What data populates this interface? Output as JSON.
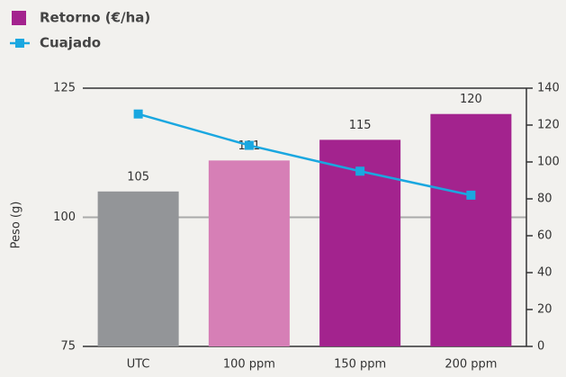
{
  "chart_data": {
    "type": "bar",
    "categories": [
      "UTC",
      "100 ppm",
      "150 ppm",
      "200 ppm"
    ],
    "series": [
      {
        "name": "Retorno (€/ha)",
        "type": "bar",
        "color": "#a3238e",
        "colors": [
          "#939598",
          "#d67fb6",
          "#a3238e",
          "#a3238e"
        ],
        "values": [
          105,
          111,
          115,
          120
        ]
      },
      {
        "name": "Cuajado",
        "type": "line",
        "axis": "y2",
        "color": "#1aa7e0",
        "values": [
          126,
          109,
          95,
          82
        ]
      }
    ],
    "ylabel": "Peso (g)",
    "ylim": [
      75,
      125
    ],
    "yticks": [
      75,
      100,
      125
    ],
    "y2lim": [
      0,
      140
    ],
    "y2ticks": [
      0,
      20,
      40,
      60,
      80,
      100,
      120,
      140
    ],
    "grid": true
  }
}
